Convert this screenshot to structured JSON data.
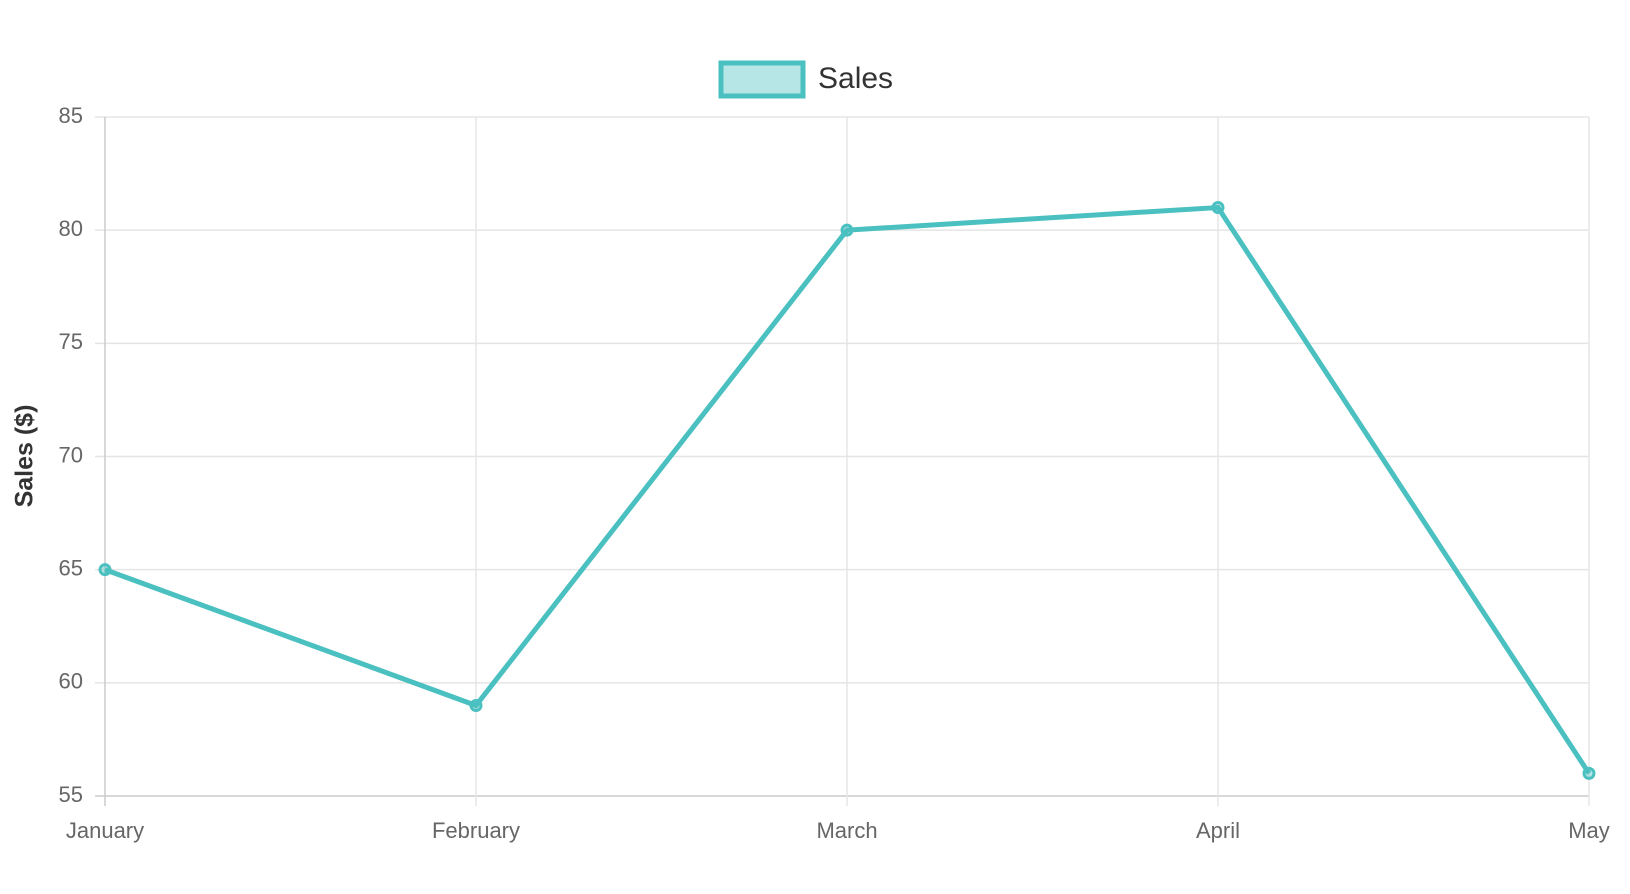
{
  "chart_data": {
    "type": "line",
    "categories": [
      "January",
      "February",
      "March",
      "April",
      "May"
    ],
    "series": [
      {
        "name": "Sales",
        "color": "#4bc0c0",
        "values": [
          65,
          59,
          80,
          81,
          56
        ]
      }
    ],
    "y_label": "Sales ($)",
    "ylim": [
      55,
      85
    ],
    "yticks": [
      55,
      60,
      65,
      70,
      75,
      80,
      85
    ],
    "grid": true,
    "legend": "top"
  }
}
